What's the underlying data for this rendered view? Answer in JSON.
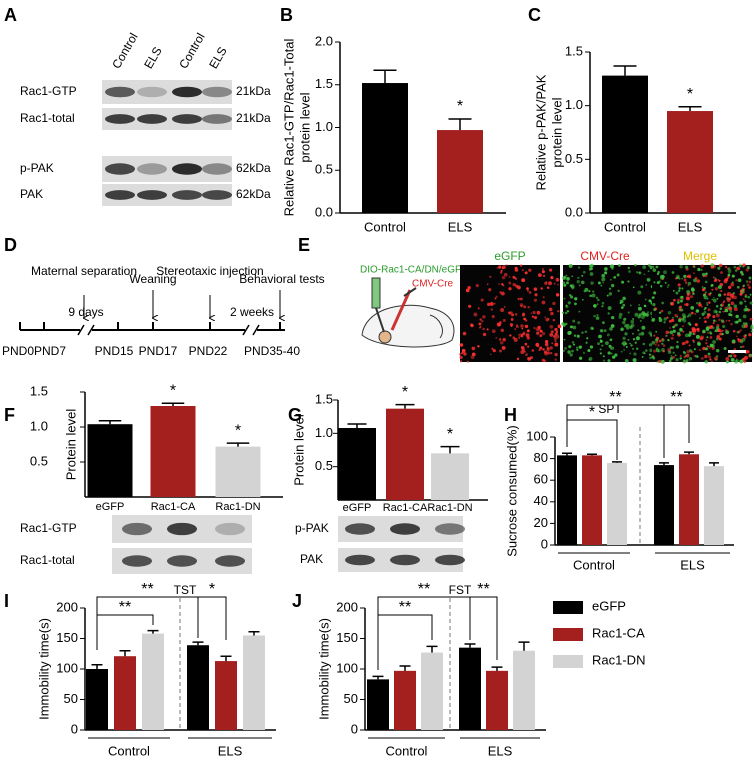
{
  "panel_labels": [
    "A",
    "B",
    "C",
    "D",
    "E",
    "F",
    "G",
    "H",
    "I",
    "J"
  ],
  "blot_A": {
    "lanes": [
      "Control",
      "ELS",
      "Control",
      "ELS"
    ],
    "rows": [
      {
        "label": "Rac1-GTP",
        "size": "21kDa"
      },
      {
        "label": "Rac1-total",
        "size": "21kDa"
      },
      {
        "label": "p-PAK",
        "size": "62kDa"
      },
      {
        "label": "PAK",
        "size": "62kDa"
      }
    ]
  },
  "timeline": {
    "events": [
      "Maternal separation",
      "Weaning",
      "Stereotaxic injection",
      "Behavioral tests"
    ],
    "durations": [
      "9 days",
      "2 weeks"
    ],
    "ages": [
      "PND0",
      "PND7",
      "PND15",
      "PND17",
      "PND22",
      "PND35-40"
    ]
  },
  "panel_E": {
    "construct": "DIO-Rac1-CA/DN/eGFP",
    "virus": "CMV-Cre",
    "images": [
      "eGFP",
      "CMV-Cre",
      "Merge"
    ]
  },
  "blot_F": {
    "rows": [
      "Rac1-GTP",
      "Rac1-total"
    ]
  },
  "blot_G": {
    "rows": [
      "p-PAK",
      "PAK"
    ]
  },
  "chart_data": [
    {
      "type": "bar",
      "ylabel": [
        "Relative Rac1-GTP/Rac1-Total",
        "protein level"
      ],
      "categories": [
        "Control",
        "ELS"
      ],
      "values": [
        1.52,
        0.97
      ],
      "errors": [
        0.15,
        0.13
      ],
      "colors": [
        "#000000",
        "#a3201f"
      ],
      "ylim": [
        0,
        2
      ],
      "yticks": [
        {
          "value": 0,
          "label": "0.0"
        },
        0.5,
        {
          "value": 1,
          "label": "1.0"
        },
        1.5,
        {
          "value": 2,
          "label": "2.0"
        }
      ],
      "annotations": [
        "*"
      ]
    },
    {
      "type": "bar",
      "ylabel": [
        "Relative p-PAK/PAK",
        "protein level"
      ],
      "categories": [
        "Control",
        "ELS"
      ],
      "values": [
        1.28,
        0.95
      ],
      "errors": [
        0.09,
        0.04
      ],
      "colors": [
        "#000000",
        "#a3201f"
      ],
      "ylim": [
        0,
        1.5
      ],
      "yticks": [
        {
          "value": 0,
          "label": "0.0"
        },
        0.5,
        {
          "value": 1,
          "label": "1.0"
        },
        1.5
      ],
      "annotations": [
        "*"
      ]
    },
    {
      "type": "bar",
      "ylabel": [
        "Protein level"
      ],
      "categories": [
        "eGFP",
        "Rac1-CA",
        "Rac1-DN"
      ],
      "values": [
        1.04,
        1.3,
        0.72
      ],
      "errors": [
        0.05,
        0.04,
        0.05
      ],
      "colors": [
        "#000000",
        "#a3201f",
        "#d3d3d3"
      ],
      "ylim": [
        0,
        1.5
      ],
      "yticks": [
        0.5,
        {
          "value": 1,
          "label": "1.0"
        },
        1.5
      ],
      "annotations": [
        "*",
        "*"
      ]
    },
    {
      "type": "bar",
      "ylabel": [
        "Protein level"
      ],
      "categories": [
        "eGFP",
        "Rac1-CA",
        "Rac1-DN"
      ],
      "values": [
        1.08,
        1.37,
        0.7
      ],
      "errors": [
        0.06,
        0.06,
        0.1
      ],
      "colors": [
        "#000000",
        "#a3201f",
        "#d3d3d3"
      ],
      "ylim": [
        0,
        1.5
      ],
      "yticks": [
        0.5,
        {
          "value": 1,
          "label": "1.0"
        },
        1.5
      ],
      "annotations": [
        "*",
        "*"
      ]
    },
    {
      "type": "grouped_bar",
      "title": "SPT",
      "ylabel": "Sucrose consumed(%)",
      "categories": [
        "Control",
        "ELS"
      ],
      "series": [
        {
          "color": "#000000",
          "values": [
            83,
            74
          ],
          "errors": [
            2,
            2
          ]
        },
        {
          "color": "#a3201f",
          "values": [
            83,
            84
          ],
          "errors": [
            1,
            2
          ]
        },
        {
          "color": "#d3d3d3",
          "values": [
            76,
            73
          ],
          "errors": [
            1,
            3
          ]
        }
      ],
      "ylim": [
        0,
        100
      ],
      "yticks": [
        0,
        20,
        40,
        60,
        80,
        100
      ],
      "annotations": [
        "*",
        "**",
        "**"
      ]
    },
    {
      "type": "grouped_bar",
      "title": "TST",
      "ylabel": "Immobility time(s)",
      "categories": [
        "Control",
        "ELS"
      ],
      "series": [
        {
          "color": "#000000",
          "values": [
            100,
            139
          ],
          "errors": [
            7,
            5
          ]
        },
        {
          "color": "#a3201f",
          "values": [
            121,
            113
          ],
          "errors": [
            9,
            8
          ]
        },
        {
          "color": "#d3d3d3",
          "values": [
            158,
            155
          ],
          "errors": [
            5,
            6
          ]
        }
      ],
      "ylim": [
        0,
        200
      ],
      "yticks": [
        0,
        50,
        100,
        150,
        200
      ],
      "annotations": [
        "**",
        "**",
        "*"
      ]
    },
    {
      "type": "grouped_bar",
      "title": "FST",
      "ylabel": "Immobility time(s)",
      "categories": [
        "Control",
        "ELS"
      ],
      "series": [
        {
          "name": "eGFP",
          "color": "#000000",
          "values": [
            83,
            135
          ],
          "errors": [
            5,
            6
          ]
        },
        {
          "name": "Rac1-CA",
          "color": "#a3201f",
          "values": [
            97,
            97
          ],
          "errors": [
            8,
            6
          ]
        },
        {
          "name": "Rac1-DN",
          "color": "#d3d3d3",
          "values": [
            127,
            130
          ],
          "errors": [
            10,
            14
          ]
        }
      ],
      "ylim": [
        0,
        200
      ],
      "yticks": [
        0,
        50,
        100,
        150,
        200
      ],
      "annotations": [
        "**",
        "**",
        "**"
      ]
    }
  ]
}
